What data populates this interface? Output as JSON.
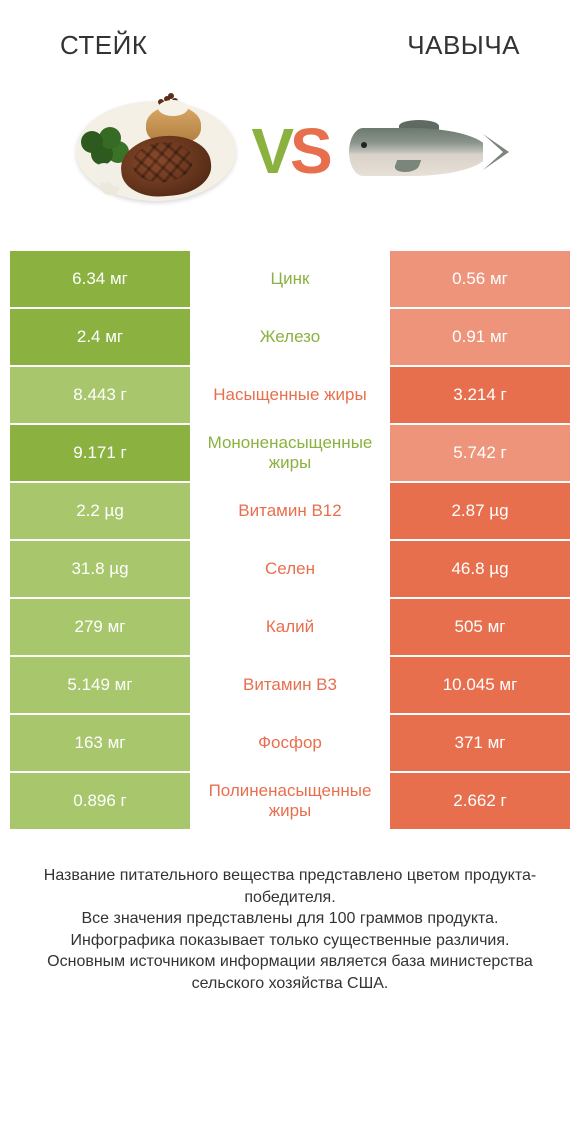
{
  "colors": {
    "left": "#8bb140",
    "right": "#e86f4e",
    "left_muted": "#a8c66c",
    "right_muted": "#ee947b",
    "text_dark": "#333333"
  },
  "header": {
    "left_title": "СТЕЙК",
    "right_title": "ЧАВЫЧА",
    "vs_v": "V",
    "vs_s": "S"
  },
  "rows": [
    {
      "label": "Цинк",
      "left": "6.34 мг",
      "right": "0.56 мг",
      "winner": "left"
    },
    {
      "label": "Железо",
      "left": "2.4 мг",
      "right": "0.91 мг",
      "winner": "left"
    },
    {
      "label": "Насыщенные жиры",
      "left": "8.443 г",
      "right": "3.214 г",
      "winner": "right"
    },
    {
      "label": "Мононенасыщенные жиры",
      "left": "9.171 г",
      "right": "5.742 г",
      "winner": "left"
    },
    {
      "label": "Витамин B12",
      "left": "2.2 µg",
      "right": "2.87 µg",
      "winner": "right"
    },
    {
      "label": "Селен",
      "left": "31.8 µg",
      "right": "46.8 µg",
      "winner": "right"
    },
    {
      "label": "Калий",
      "left": "279 мг",
      "right": "505 мг",
      "winner": "right"
    },
    {
      "label": "Витамин B3",
      "left": "5.149 мг",
      "right": "10.045 мг",
      "winner": "right"
    },
    {
      "label": "Фосфор",
      "left": "163 мг",
      "right": "371 мг",
      "winner": "right"
    },
    {
      "label": "Полиненасыщенные жиры",
      "left": "0.896 г",
      "right": "2.662 г",
      "winner": "right"
    }
  ],
  "footer": {
    "line1": "Название питательного вещества представлено цветом продукта-победителя.",
    "line2": "Все значения представлены для 100 граммов продукта.",
    "line3": "Инфографика показывает только существенные различия.",
    "line4": "Основным источником информации является база министерства сельского хозяйства США."
  }
}
